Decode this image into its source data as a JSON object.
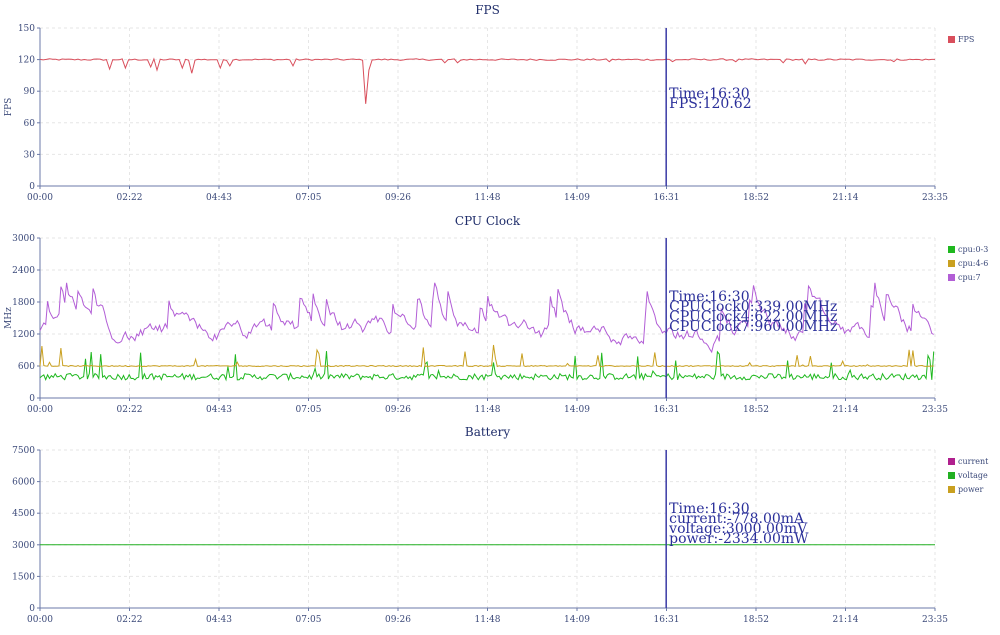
{
  "chart_data": [
    {
      "type": "line",
      "title": "FPS",
      "ylabel": "FPS",
      "ylim": [
        0,
        150
      ],
      "yticks": [
        "0",
        "30",
        "60",
        "90",
        "120",
        "150"
      ],
      "x_tick_labels": [
        "00:00",
        "02:22",
        "04:43",
        "07:05",
        "09:26",
        "11:48",
        "14:09",
        "16:31",
        "18:52",
        "21:14",
        "23:35"
      ],
      "x_minutes_range": [
        0,
        1415
      ],
      "grid": true,
      "legend_position": "right",
      "series": [
        {
          "name": "FPS",
          "color": "#d94f5c",
          "baseline": 120,
          "dips": [
            [
              110,
              111
            ],
            [
              135,
              112
            ],
            [
              175,
              113
            ],
            [
              185,
              110
            ],
            [
              225,
              112
            ],
            [
              240,
              107
            ],
            [
              285,
              112
            ],
            [
              300,
              114
            ],
            [
              400,
              114
            ],
            [
              512,
              112
            ],
            [
              515,
              78
            ],
            [
              520,
              110
            ],
            [
              640,
              117
            ],
            [
              660,
              117
            ],
            [
              900,
              118
            ],
            [
              1000,
              118
            ],
            [
              1100,
              118
            ],
            [
              1175,
              117
            ],
            [
              1202,
              112
            ],
            [
              1210,
              116
            ],
            [
              1350,
              118
            ]
          ]
        }
      ],
      "cursor": {
        "time_minutes": 990,
        "lines": [
          "Time:16:30",
          "FPS:120.62"
        ]
      }
    },
    {
      "type": "line",
      "title": "CPU Clock",
      "ylabel": "MHz",
      "ylim": [
        0,
        3000
      ],
      "yticks": [
        "0",
        "600",
        "1200",
        "1800",
        "2400",
        "3000"
      ],
      "x_tick_labels": [
        "00:00",
        "02:22",
        "04:43",
        "07:05",
        "09:26",
        "11:48",
        "14:09",
        "16:31",
        "18:52",
        "21:14",
        "23:35"
      ],
      "x_minutes_range": [
        0,
        1415
      ],
      "grid": true,
      "legend_position": "right",
      "series": [
        {
          "name": "cpu:0-3",
          "color": "#1fb81f",
          "baseline": 400,
          "noise": 120,
          "spike_max": 900
        },
        {
          "name": "cpu:4-6",
          "color": "#c9a020",
          "baseline": 600,
          "noise": 20,
          "spike_max": 1000
        },
        {
          "name": "cpu:7",
          "color": "#b25ed6",
          "baseline": 1200,
          "noise": 500,
          "min": 750,
          "max": 2400
        }
      ],
      "cursor": {
        "time_minutes": 990,
        "lines": [
          "Time:16:30",
          "CPUClock0:339.00MHz",
          "CPUClock4:622.00MHz",
          "CPUClock7:960.00MHz"
        ]
      }
    },
    {
      "type": "line",
      "title": "Battery",
      "ylabel": "",
      "ylim": [
        0,
        7500
      ],
      "yticks": [
        "0",
        "1500",
        "3000",
        "4500",
        "6000",
        "7500"
      ],
      "x_tick_labels": [
        "00:00",
        "02:22",
        "04:43",
        "07:05",
        "09:26",
        "11:48",
        "14:09",
        "16:31",
        "18:52",
        "21:14",
        "23:35"
      ],
      "x_minutes_range": [
        0,
        1415
      ],
      "grid": true,
      "legend_position": "right",
      "series": [
        {
          "name": "current",
          "color": "#b0208e",
          "values_constant": -778
        },
        {
          "name": "voltage",
          "color": "#22b022",
          "values_constant": 3000
        },
        {
          "name": "power",
          "color": "#c9a020",
          "values_constant": -2334
        }
      ],
      "cursor": {
        "time_minutes": 990,
        "lines": [
          "Time:16:30",
          "current:-778.00mA",
          "voltage:3000.00mV",
          "power:-2334.00mW"
        ]
      }
    }
  ]
}
